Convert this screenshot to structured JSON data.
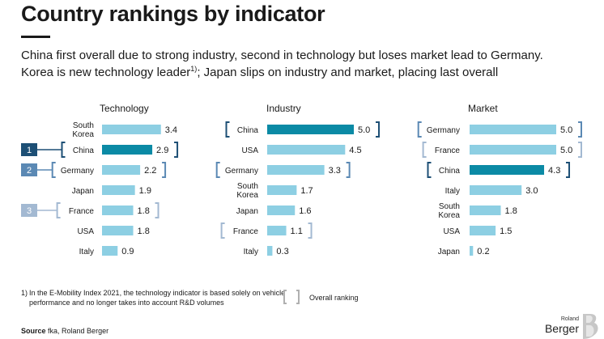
{
  "title": "Country rankings by indicator",
  "subtitle_line1": "China first overall due to strong industry, second in technology but loses market lead to Germany.",
  "subtitle_line2_a": "Korea is new technology leader",
  "subtitle_line2_sup": "1)",
  "subtitle_line2_b": "; Japan slips on industry and market, placing last overall",
  "colors": {
    "bar": "#8dcfe3",
    "highlight": "#0b8aa5",
    "rank1": "#1d4f75",
    "rank2": "#5b89b4",
    "rank3": "#a3b9d2",
    "legend_bracket": "#b0b0b0"
  },
  "chart_data": [
    {
      "type": "bar",
      "title": "Technology",
      "categories": [
        "South Korea",
        "China",
        "Germany",
        "Japan",
        "France",
        "USA",
        "Italy"
      ],
      "values": [
        3.4,
        2.9,
        2.2,
        1.9,
        1.8,
        1.8,
        0.9
      ],
      "labels": [
        "3.4",
        "2.9",
        "2.2",
        "1.9",
        "1.8",
        "1.8",
        "0.9"
      ],
      "highlight": "China",
      "overall_rank": {
        "China": 1,
        "Germany": 2,
        "France": 3
      },
      "rank_labels": {
        "China": "1",
        "Germany": "2",
        "France": "3"
      }
    },
    {
      "type": "bar",
      "title": "Industry",
      "categories": [
        "China",
        "USA",
        "Germany",
        "South Korea",
        "Japan",
        "France",
        "Italy"
      ],
      "values": [
        5.0,
        4.5,
        3.3,
        1.7,
        1.6,
        1.1,
        0.3
      ],
      "labels": [
        "5.0",
        "4.5",
        "3.3",
        "1.7",
        "1.6",
        "1.1",
        "0.3"
      ],
      "highlight": "China",
      "overall_rank": {
        "China": 1,
        "Germany": 2,
        "France": 3
      }
    },
    {
      "type": "bar",
      "title": "Market",
      "categories": [
        "Germany",
        "France",
        "China",
        "Italy",
        "South Korea",
        "USA",
        "Japan"
      ],
      "values": [
        5.0,
        5.0,
        4.3,
        3.0,
        1.8,
        1.5,
        0.2
      ],
      "labels": [
        "5.0",
        "5.0",
        "4.3",
        "3.0",
        "1.8",
        "1.5",
        "0.2"
      ],
      "highlight": "China",
      "overall_rank": {
        "China": 1,
        "Germany": 2,
        "France": 3
      }
    }
  ],
  "footnote_num": "1)",
  "footnote_text": "In the E-Mobility Index 2021, the technology indicator is based solely on vehicle performance and no longer takes into account R&D volumes",
  "legend_label": "Overall ranking",
  "source_label": "Source",
  "source_text": "fka, Roland Berger",
  "logo_small": "Roland",
  "logo_big": "Berger"
}
